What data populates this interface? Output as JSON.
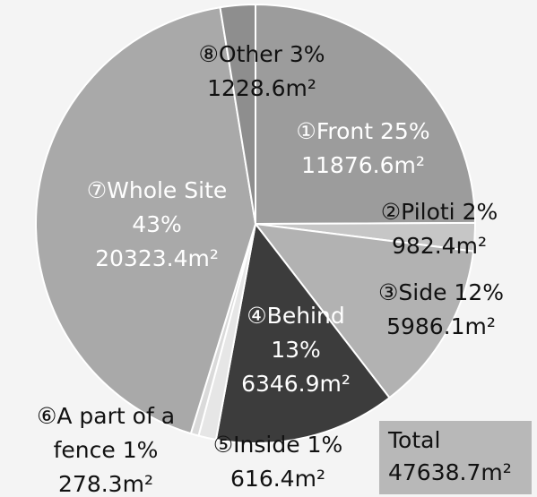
{
  "chart_data": {
    "type": "pie",
    "categories": [
      "①Front",
      "②Piloti",
      "③Side",
      "④Behind",
      "⑤Inside",
      "⑥A part of a fence",
      "⑦Whole Site",
      "⑧Other"
    ],
    "values": [
      11876.6,
      982.4,
      5986.1,
      6346.9,
      616.4,
      278.3,
      20323.4,
      1228.6
    ],
    "value_labels": [
      "11876.6m²",
      "982.4m²",
      "5986.1m²",
      "6346.9m²",
      "616.4m²",
      "278.3m²",
      "20323.4m²",
      "1228.6m²"
    ],
    "percents": [
      25,
      2,
      12,
      13,
      1,
      1,
      43,
      3
    ],
    "percent_labels": [
      "25%",
      "2%",
      "12%",
      "13%",
      "1%",
      "1%",
      "43%",
      "3%"
    ],
    "colors": [
      "#9c9c9c",
      "#c6c6c6",
      "#b2b2b2",
      "#3c3c3c",
      "#e6e6e6",
      "#dadada",
      "#a9a9a9",
      "#8e8e8e"
    ],
    "total_title": "Total",
    "total_value": 47638.7,
    "total_label": "47638.7m²"
  }
}
